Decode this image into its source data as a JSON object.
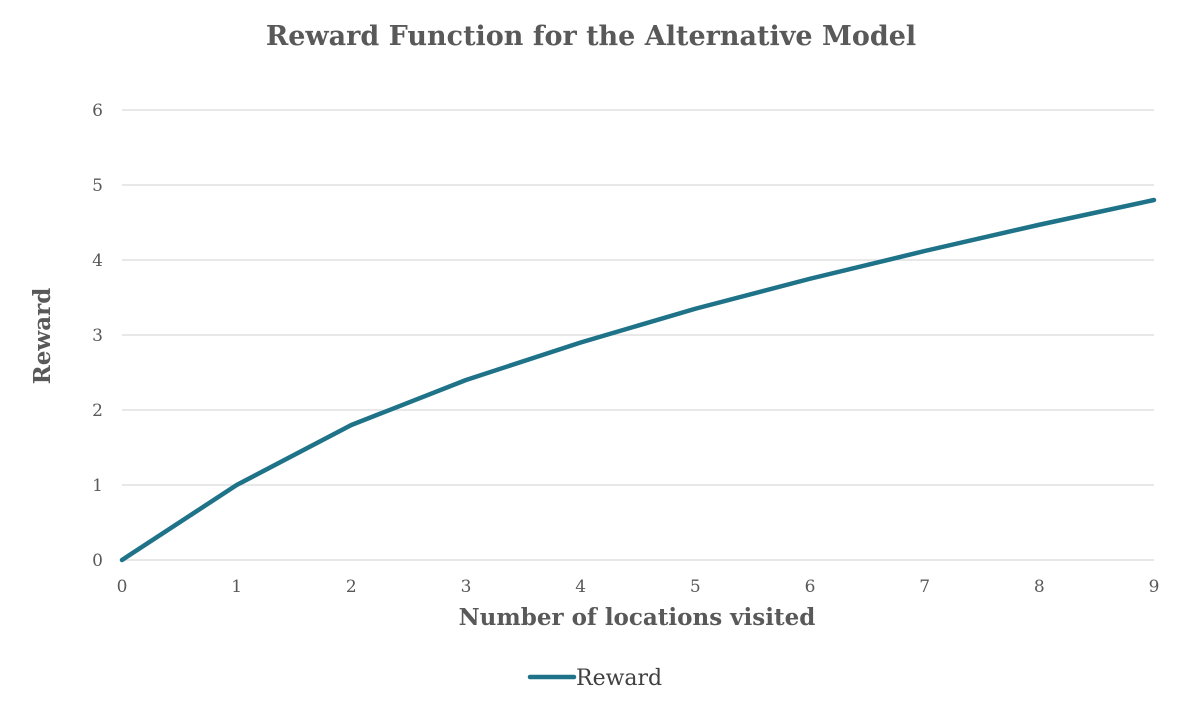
{
  "chart_data": {
    "type": "line",
    "title": "Reward Function for the Alternative Model",
    "xlabel": "Number of locations visited",
    "ylabel": "Reward",
    "x": [
      0,
      1,
      2,
      3,
      4,
      5,
      6,
      7,
      8,
      9
    ],
    "series": [
      {
        "name": "Reward",
        "values": [
          0,
          1.0,
          1.8,
          2.4,
          2.9,
          3.35,
          3.75,
          4.12,
          4.47,
          4.8
        ]
      }
    ],
    "xticks": [
      "0",
      "1",
      "2",
      "3",
      "4",
      "5",
      "6",
      "7",
      "8",
      "9"
    ],
    "yticks": [
      "0",
      "1",
      "2",
      "3",
      "4",
      "5",
      "6"
    ],
    "xlim": [
      0,
      9
    ],
    "ylim": [
      0,
      6
    ],
    "grid": "horizontal",
    "legend_position": "bottom",
    "colors": {
      "series": "#1f7389",
      "grid": "#d9d9d9",
      "text": "#595959"
    }
  }
}
